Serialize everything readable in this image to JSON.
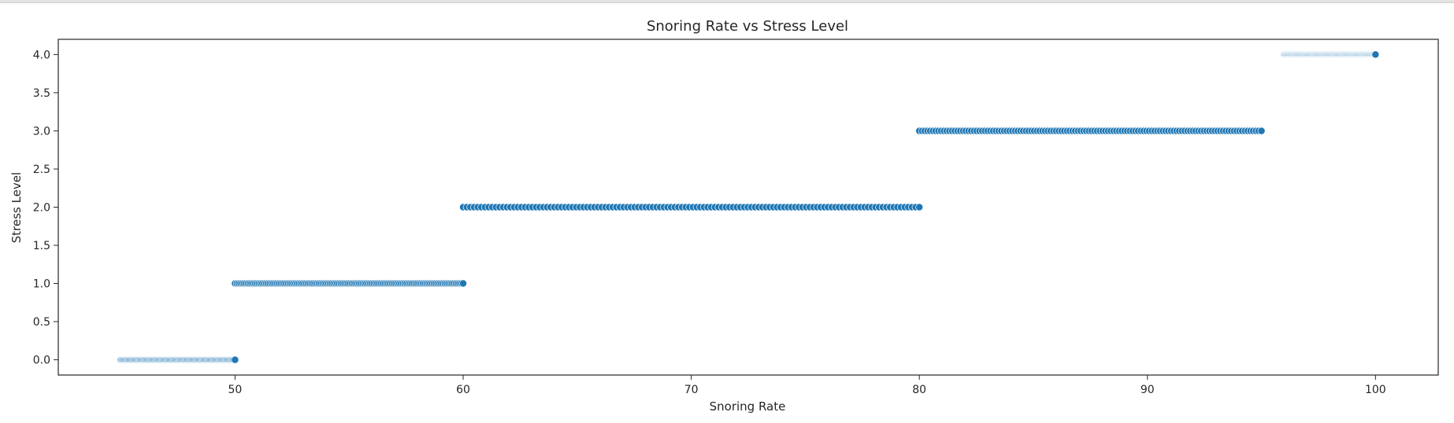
{
  "chart_data": {
    "type": "scatter",
    "title": "Snoring Rate vs Stress Level",
    "xlabel": "Snoring Rate",
    "ylabel": "Stress Level",
    "xlim": [
      42.25,
      102.75
    ],
    "ylim": [
      -0.2,
      4.2
    ],
    "xticks": [
      50,
      60,
      70,
      80,
      90,
      100
    ],
    "yticks": [
      0.0,
      0.5,
      1.0,
      1.5,
      2.0,
      2.5,
      3.0,
      3.5,
      4.0
    ],
    "grid": false,
    "legend": "none",
    "marker_color": "#1f77b4",
    "marker_edge_color": "#ffffff",
    "groups": [
      {
        "y": 0,
        "x_range": [
          45,
          50
        ],
        "count": 126
      },
      {
        "y": 1,
        "x_range": [
          50,
          60
        ],
        "count": 126
      },
      {
        "y": 2,
        "x_range": [
          60,
          80
        ],
        "count": 126
      },
      {
        "y": 3,
        "x_range": [
          80,
          95
        ],
        "count": 126
      },
      {
        "y": 4,
        "x_range": [
          96,
          100
        ],
        "count": 126
      }
    ]
  }
}
